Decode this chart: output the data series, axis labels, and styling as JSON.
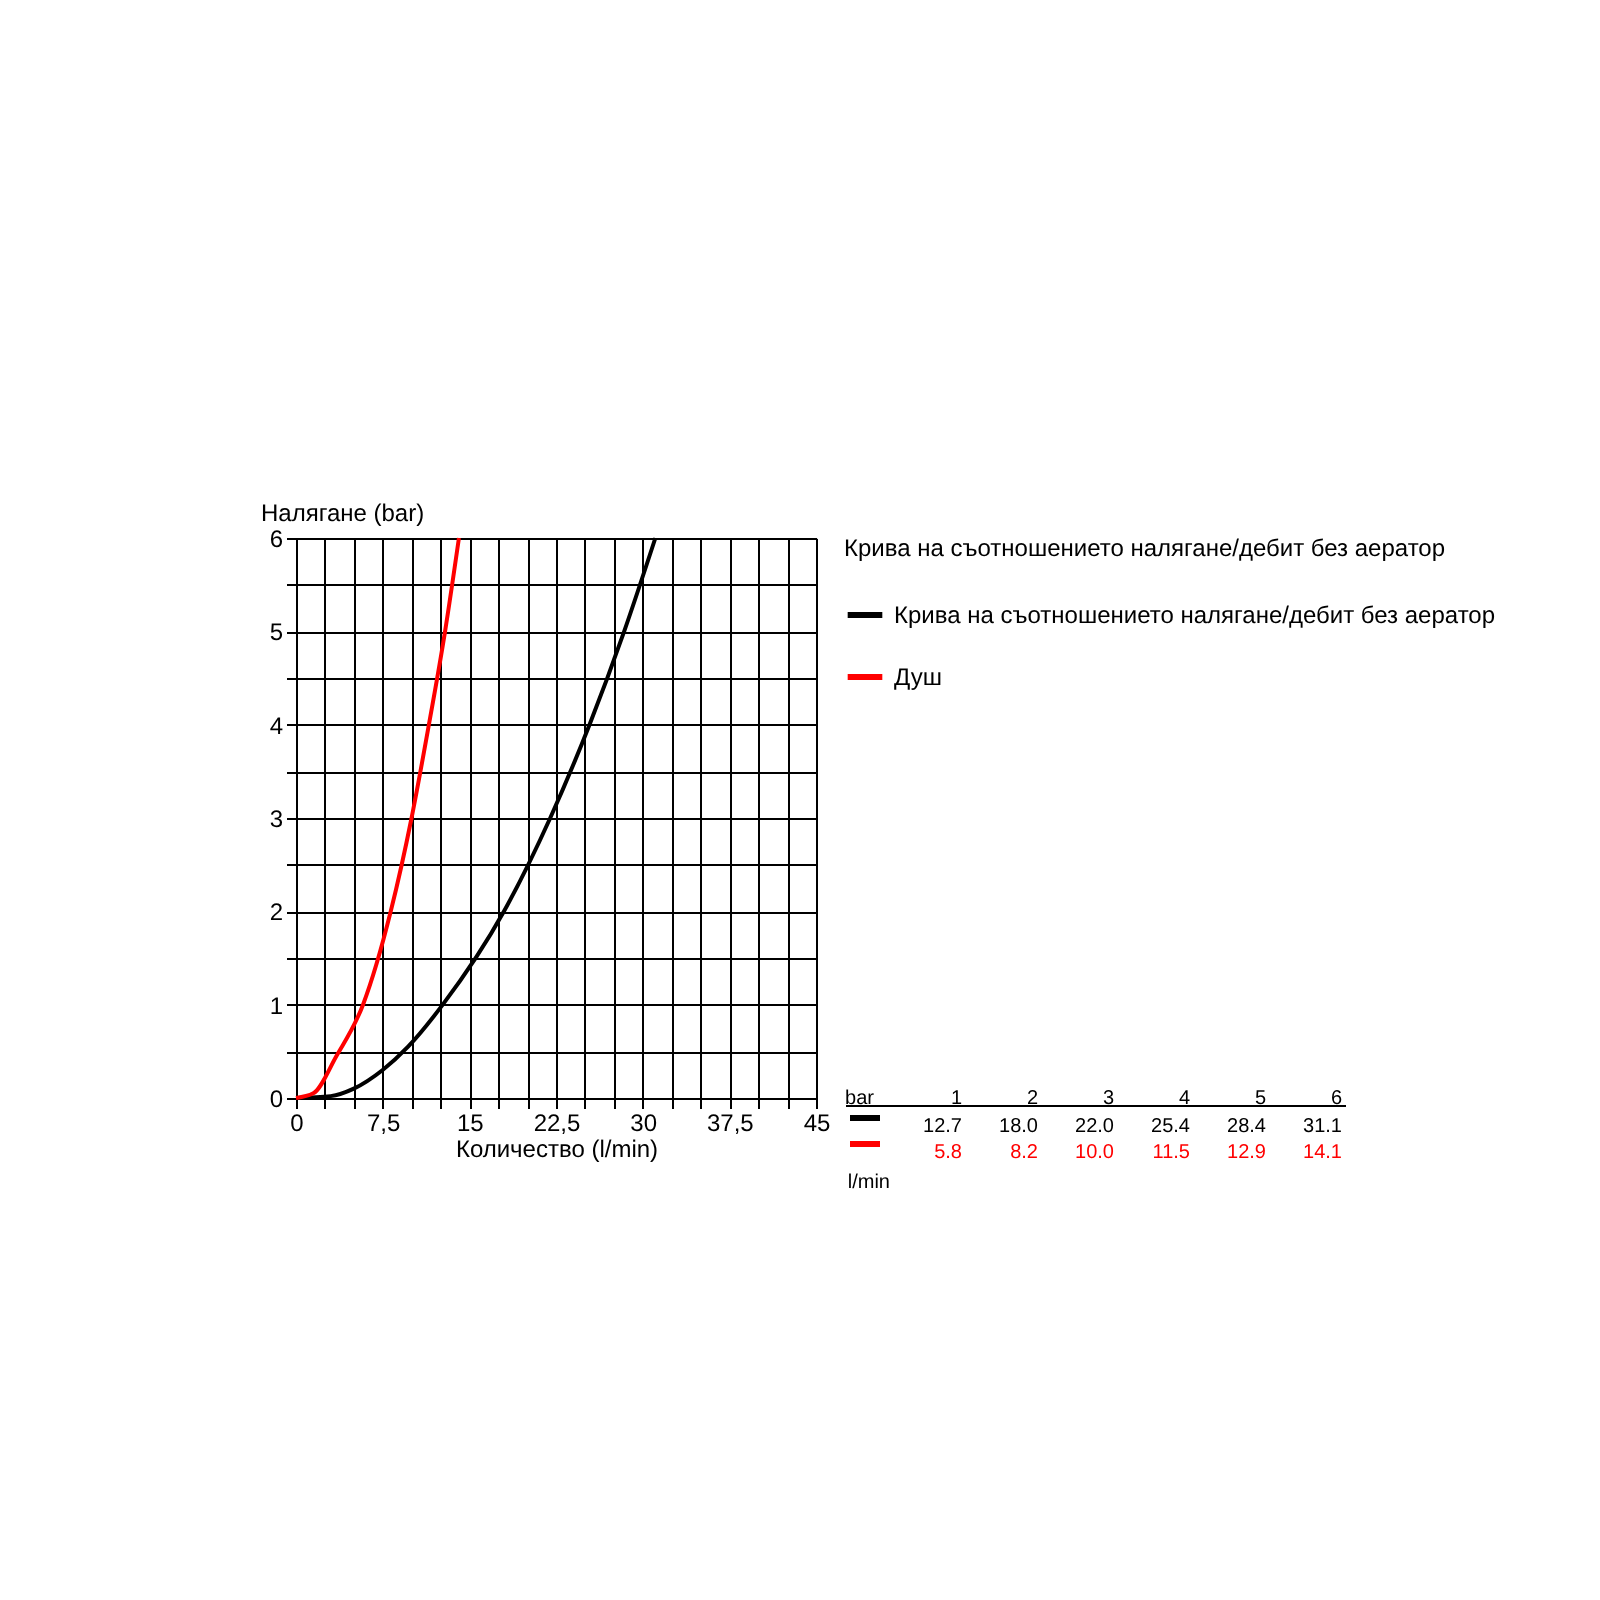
{
  "chart_data": {
    "type": "line",
    "xlabel": "Количество (l/min)",
    "ylabel": "Налягане (bar)",
    "legend_title": "Крива на съотношението налягане/дебит без аератор",
    "xlim": [
      0,
      45
    ],
    "ylim": [
      0,
      6
    ],
    "xticks": [
      0,
      {
        "value": 2.5,
        "label": null
      },
      {
        "value": 5,
        "label": null
      },
      {
        "value": 7.5,
        "label": "7,5"
      },
      {
        "value": 10,
        "label": null
      },
      {
        "value": 12.5,
        "label": null
      },
      15,
      {
        "value": 17.5,
        "label": null
      },
      {
        "value": 20,
        "label": null
      },
      {
        "value": 22.5,
        "label": "22,5"
      },
      {
        "value": 25,
        "label": null
      },
      {
        "value": 27.5,
        "label": null
      },
      30,
      {
        "value": 32.5,
        "label": null
      },
      {
        "value": 35,
        "label": null
      },
      {
        "value": 37.5,
        "label": "37,5"
      },
      {
        "value": 40,
        "label": null
      },
      {
        "value": 42.5,
        "label": null
      },
      45
    ],
    "yticks": [
      0,
      {
        "value": 0.5,
        "label": null
      },
      1,
      {
        "value": 1.5,
        "label": null
      },
      2,
      {
        "value": 2.5,
        "label": null
      },
      3,
      {
        "value": 3.5,
        "label": null
      },
      4,
      {
        "value": 4.5,
        "label": null
      },
      5,
      {
        "value": 5.5,
        "label": null
      },
      6
    ],
    "grid": true,
    "legend": "right",
    "marker": "none",
    "line_style": "solid",
    "annotations": [
      "bar",
      "1",
      "2",
      "3",
      "4",
      "5",
      "6",
      "12.7",
      "18.0",
      "22.0",
      "25.4",
      "28.4",
      "31.1",
      "5.8",
      "8.2",
      "10.0",
      "11.5",
      "12.9",
      "14.1",
      "l/min"
    ],
    "series": [
      {
        "name": "Крива на съотношението налягане/дебит без аератор",
        "color": "#000000",
        "x": [
          0,
          3,
          5,
          7.5,
          9.7,
          12.7,
          18.0,
          22.0,
          25.4,
          28.4,
          31.1
        ],
        "values": [
          0,
          0.02,
          0.1,
          0.3,
          0.55,
          1,
          2,
          3,
          4,
          5,
          6
        ]
      },
      {
        "name": "Душ",
        "color": "#ff0000",
        "x": [
          0,
          1.5,
          3.5,
          5.8,
          8.2,
          10.0,
          11.5,
          12.9,
          14.1
        ],
        "values": [
          0,
          0.05,
          0.45,
          1,
          2,
          3,
          4,
          5,
          6
        ]
      }
    ]
  }
}
